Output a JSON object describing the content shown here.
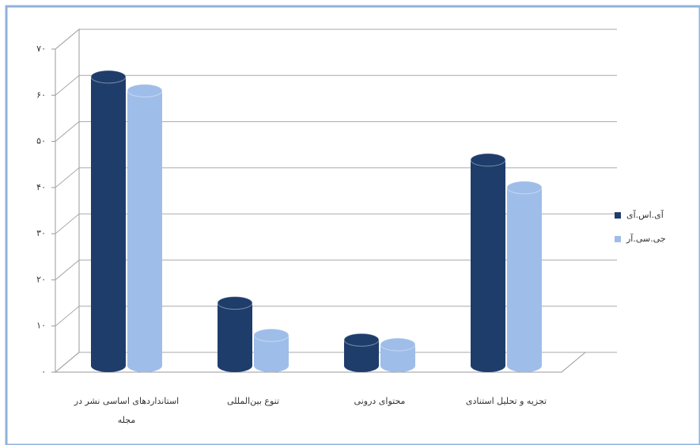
{
  "chart_data": {
    "type": "bar",
    "categories": [
      "استانداردهای اساسی نشر در مجله",
      "تنوع بین‌المللی",
      "محتوای درونی",
      "تجزیه و تحلیل استنادی"
    ],
    "series": [
      {
        "name": "آی.اس.آی",
        "color": "#1f3d6b",
        "values": [
          64,
          15,
          7,
          46
        ]
      },
      {
        "name": "جی.سی.آر",
        "color": "#9fbde9",
        "values": [
          61,
          8,
          6,
          40
        ]
      }
    ],
    "ylim": [
      0,
      70
    ],
    "yticks": [
      {
        "value": 0,
        "label": "۰"
      },
      {
        "value": 10,
        "label": "۱۰"
      },
      {
        "value": 20,
        "label": "۲۰"
      },
      {
        "value": 30,
        "label": "۳۰"
      },
      {
        "value": 40,
        "label": "۴۰"
      },
      {
        "value": 50,
        "label": "۵۰"
      },
      {
        "value": 60,
        "label": "۶۰"
      },
      {
        "value": 70,
        "label": "۷۰"
      }
    ],
    "grid": true
  }
}
